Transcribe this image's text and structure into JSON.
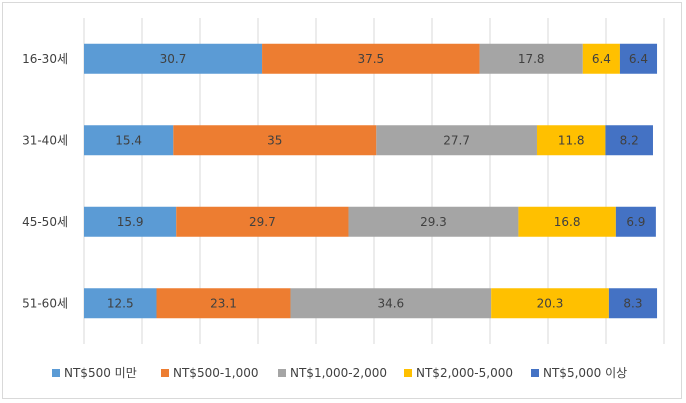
{
  "chart_data": {
    "type": "bar",
    "orientation": "horizontal",
    "stacked": true,
    "title": "",
    "xlabel": "",
    "ylabel": "",
    "xlim": [
      0,
      100
    ],
    "grid": true,
    "legend_position": "bottom",
    "categories": [
      "16-30세",
      "31-40세",
      "45-50세",
      "51-60세"
    ],
    "series": [
      {
        "name": "NT$500 미만",
        "color": "#5b9bd5",
        "values": [
          30.7,
          15.4,
          15.9,
          12.5
        ]
      },
      {
        "name": "NT$500-1,000",
        "color": "#ed7d31",
        "values": [
          37.5,
          35,
          29.7,
          23.1
        ]
      },
      {
        "name": "NT$1,000-2,000",
        "color": "#a5a5a5",
        "values": [
          17.8,
          27.7,
          29.3,
          34.6
        ]
      },
      {
        "name": "NT$2,000-5,000",
        "color": "#ffc000",
        "values": [
          6.4,
          11.8,
          16.8,
          20.3
        ]
      },
      {
        "name": "NT$5,000 이상",
        "color": "#4472c4",
        "values": [
          6.4,
          8.2,
          6.9,
          8.3
        ]
      }
    ]
  }
}
